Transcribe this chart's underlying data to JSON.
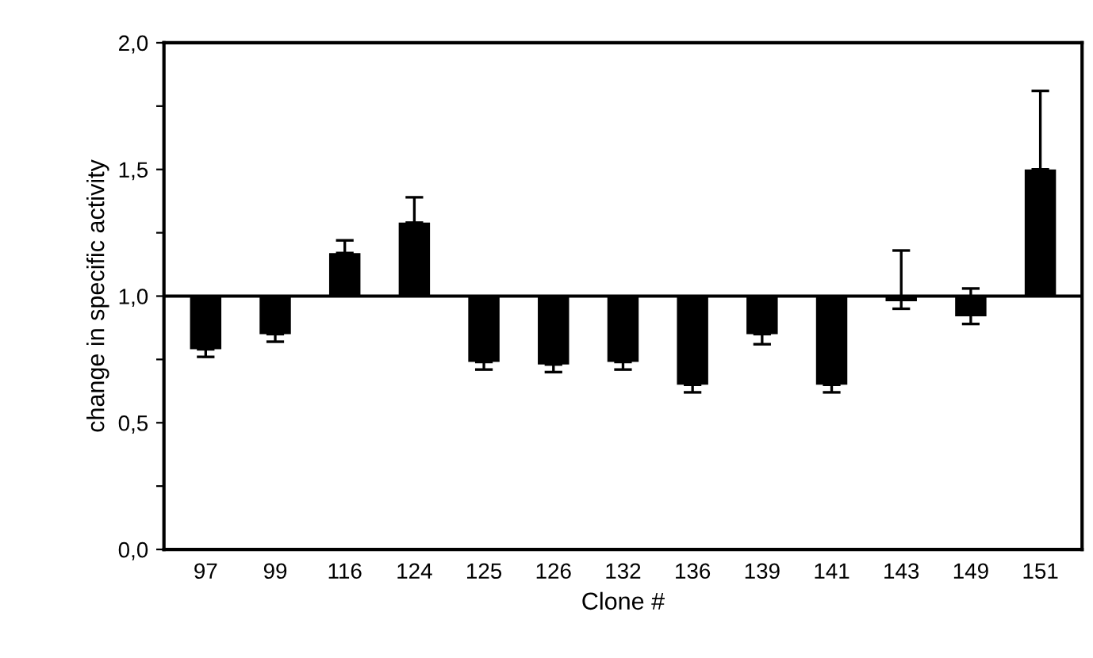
{
  "chart_data": {
    "type": "bar",
    "xlabel": "Clone #",
    "ylabel": "change in specific activity",
    "categories": [
      "97",
      "99",
      "116",
      "124",
      "125",
      "126",
      "132",
      "136",
      "139",
      "141",
      "143",
      "149",
      "151"
    ],
    "base": [
      1,
      1,
      1,
      1,
      1,
      1,
      1,
      1,
      1,
      1,
      1,
      1,
      1
    ],
    "values": [
      -0.21,
      -0.15,
      0.17,
      0.29,
      -0.26,
      -0.27,
      -0.26,
      -0.35,
      -0.15,
      -0.35,
      -0.02,
      -0.08,
      0.5
    ],
    "errors": [
      [
        0.76,
        0.79
      ],
      [
        0.82,
        0.85
      ],
      [
        1.17,
        1.22
      ],
      [
        1.29,
        1.39
      ],
      [
        0.71,
        0.74
      ],
      [
        0.7,
        0.73
      ],
      [
        0.71,
        0.74
      ],
      [
        0.62,
        0.65
      ],
      [
        0.81,
        0.85
      ],
      [
        0.62,
        0.65
      ],
      [
        0.95,
        1.18
      ],
      [
        0.89,
        1.03
      ],
      [
        1.5,
        1.81
      ]
    ],
    "color": "#000000",
    "ylim": [
      0,
      2
    ],
    "yticks": [
      {
        "value": 0,
        "label": "0,0"
      },
      {
        "value": 0.25,
        "label": null
      },
      {
        "value": 0.5,
        "label": "0,5"
      },
      {
        "value": 0.75,
        "label": null
      },
      {
        "value": 1,
        "label": "1,0"
      },
      {
        "value": 1.25,
        "label": null
      },
      {
        "value": 1.5,
        "label": "1,5"
      },
      {
        "value": 1.75,
        "label": null
      },
      {
        "value": 2,
        "label": "2,0"
      }
    ],
    "ref_lines": [
      {
        "axis": "y",
        "value": 1,
        "color": "#000000"
      }
    ],
    "grid": false,
    "legend": false
  }
}
